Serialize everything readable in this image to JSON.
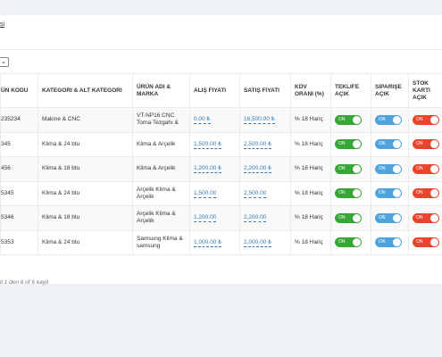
{
  "header": {
    "title": "si"
  },
  "length_select": {
    "icon": "chevron-down-icon",
    "value": ""
  },
  "table": {
    "columns": [
      "ÜN KODU",
      "KATEGORI & ALT KATEGORI",
      "ÜRÜN ADI & MARKA",
      "ALIŞ FIYATI",
      "SATIŞ FIYATI",
      "KDV ORANI (%)",
      "TEKLIFE AÇIK",
      "SIPARIŞE AÇIK",
      "STOK KARTI AÇIK"
    ],
    "rows": [
      {
        "code": "235234",
        "category": "Makine & CNC",
        "product": "VT-NP16 CNC Torna Tezgahı &",
        "buy": "0.00 ₺",
        "sell": "16,500.00 ₺",
        "vat": "% 18 Hariç",
        "offer": "ON",
        "order": "ON",
        "stock": "ON"
      },
      {
        "code": "345",
        "category": "Klima & 24 btu",
        "product": "Klima & Arçelik",
        "buy": "1,500.00 ₺",
        "sell": "2,500.00 ₺",
        "vat": "% 18 Hariç",
        "offer": "ON",
        "order": "ON",
        "stock": "ON"
      },
      {
        "code": "456",
        "category": "Klima & 18 btu",
        "product": "Klima & Arçelik",
        "buy": "1,200.00 ₺",
        "sell": "2,200.00 ₺",
        "vat": "% 18 Hariç",
        "offer": "ON",
        "order": "ON",
        "stock": "ON"
      },
      {
        "code": "5345",
        "category": "Klima & 24 btu",
        "product": "Arçelik Klima & Arçelik",
        "buy": "1,500.00",
        "sell": "2,500.00",
        "vat": "% 18 Hariç",
        "offer": "ON",
        "order": "ON",
        "stock": "ON"
      },
      {
        "code": "5346",
        "category": "Klima & 18 btu",
        "product": "Arçelik Klima & Arçelik",
        "buy": "1,200.00",
        "sell": "2,200.00",
        "vat": "% 18 Hariç",
        "offer": "ON",
        "order": "ON",
        "stock": "ON"
      },
      {
        "code": "5353",
        "category": "Klima & 24 btu",
        "product": "Samsung Klima & samsung",
        "buy": "1,000.00 ₺",
        "sell": "2,000.00 ₺",
        "vat": "% 18 Hariç",
        "offer": "ON",
        "order": "ON",
        "stock": "ON"
      }
    ]
  },
  "toggle_colors": {
    "offer": "#36a635",
    "order": "#4fa3dd",
    "stock": "#e8452c"
  },
  "footer": {
    "info": "li 1 den 6 of 6 kayit"
  }
}
